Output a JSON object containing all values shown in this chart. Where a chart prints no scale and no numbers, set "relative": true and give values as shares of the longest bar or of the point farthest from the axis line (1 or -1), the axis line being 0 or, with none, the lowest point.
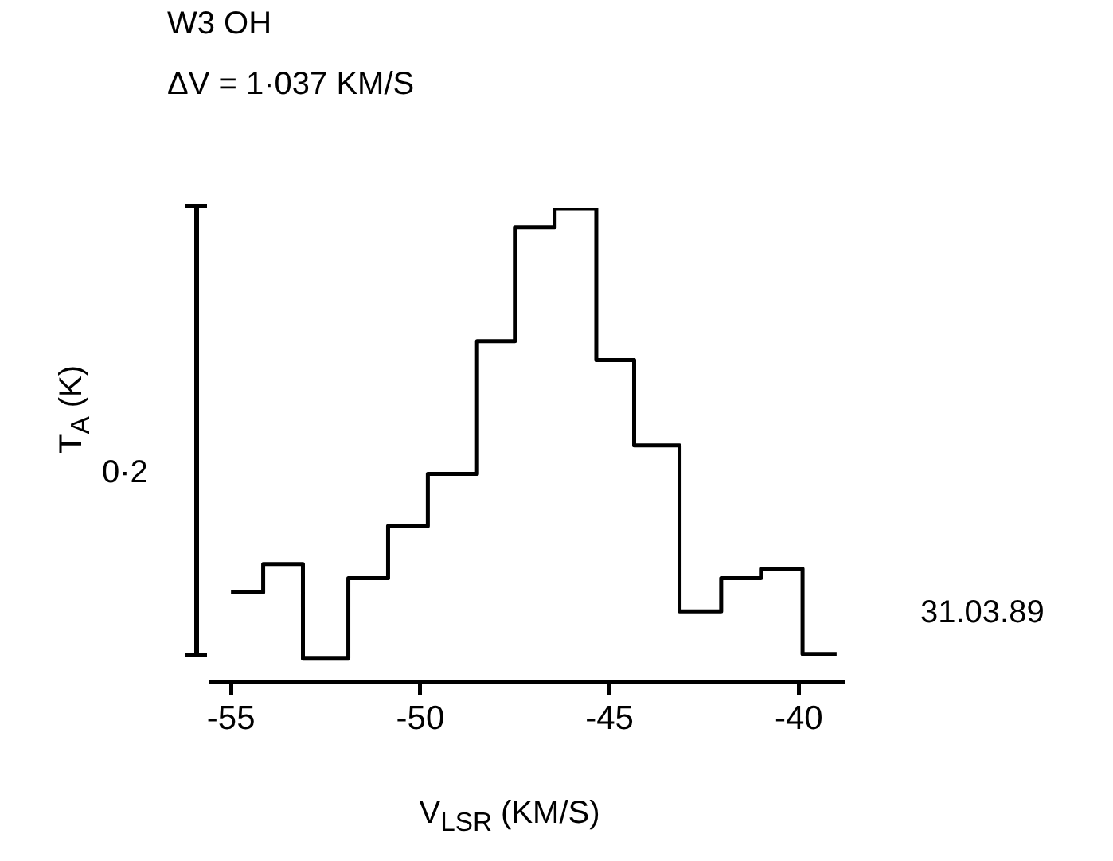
{
  "chart_data": {
    "type": "step",
    "title": "W3 OH",
    "subtitle": "ΔV = 1·037 KM/S",
    "xlabel": "V$_{LSR}$ (KM/S)",
    "ylabel": "T$_{A}$ (K)",
    "x": [
      -55,
      -54.15,
      -53.1,
      -51.9,
      -50.85,
      -49.8,
      -48.5,
      -47.5,
      -46.45,
      -45.35,
      -44.35,
      -43.15,
      -42.05,
      -41,
      -39.9,
      -39
    ],
    "relative": true,
    "values": [
      0.19,
      0.25,
      0.05,
      0.22,
      0.33,
      0.44,
      0.72,
      0.96,
      1,
      0.68,
      0.5,
      0.15,
      0.22,
      0.24,
      0.06,
      0.06
    ],
    "color": "#000000",
    "xlim": [
      -55.55,
      -38.85
    ],
    "xticks": [
      -55,
      -50,
      -45,
      -40
    ],
    "grid": false,
    "legend": false,
    "annotations": [
      "0·2",
      "31.03.89"
    ]
  }
}
